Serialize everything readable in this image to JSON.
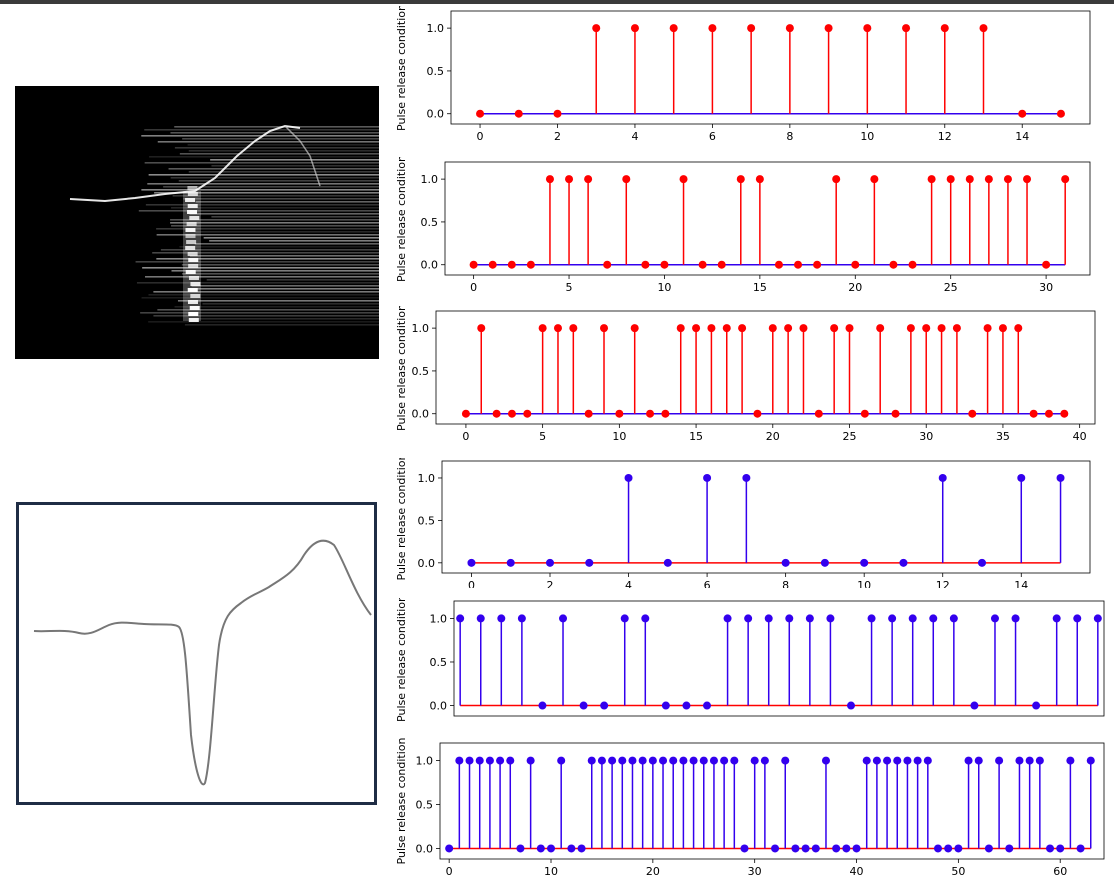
{
  "images": {
    "spectrogram": "grayscale spectrogram-like pulse image",
    "waveform": "single grey waveform with deep dip and later peak"
  },
  "colors": {
    "red": "#ff0000",
    "blue": "#3300ee",
    "frame": "#1f2d45",
    "wave": "#777777"
  },
  "chart_data": [
    {
      "type": "stem",
      "ylabel": "Pulse release condition",
      "x": [
        0,
        1,
        2,
        3,
        4,
        5,
        6,
        7,
        8,
        9,
        10,
        11,
        12,
        13,
        14,
        15
      ],
      "values": [
        0,
        0,
        0,
        1,
        1,
        1,
        1,
        1,
        1,
        1,
        1,
        1,
        1,
        1,
        0,
        0
      ],
      "xlim": [
        -0.75,
        15.75
      ],
      "ylim": [
        -0.12,
        1.2
      ],
      "xticks": [
        0,
        2,
        4,
        6,
        8,
        10,
        12,
        14
      ],
      "yticks": [
        0.0,
        0.5,
        1.0
      ],
      "stem_color": "#ff0000",
      "base_color": "#3300ee"
    },
    {
      "type": "stem",
      "ylabel": "Pulse release condition",
      "x": [
        0,
        1,
        2,
        3,
        4,
        5,
        6,
        7,
        8,
        9,
        10,
        11,
        12,
        13,
        14,
        15,
        16,
        17,
        18,
        19,
        20,
        21,
        22,
        23,
        24,
        25,
        26,
        27,
        28,
        29,
        30,
        31
      ],
      "values": [
        0,
        0,
        0,
        0,
        1,
        1,
        1,
        0,
        1,
        0,
        0,
        1,
        0,
        0,
        1,
        1,
        0,
        0,
        0,
        1,
        0,
        1,
        0,
        0,
        1,
        1,
        1,
        1,
        1,
        1,
        0,
        1
      ],
      "xlim": [
        -1.5,
        32.3
      ],
      "ylim": [
        -0.12,
        1.2
      ],
      "xticks": [
        0,
        5,
        10,
        15,
        20,
        25,
        30
      ],
      "yticks": [
        0.0,
        0.5,
        1.0
      ],
      "stem_color": "#ff0000",
      "base_color": "#3300ee"
    },
    {
      "type": "stem",
      "ylabel": "Pulse release condition",
      "x": [
        0,
        1,
        2,
        3,
        4,
        5,
        6,
        7,
        8,
        9,
        10,
        11,
        12,
        13,
        14,
        15,
        16,
        17,
        18,
        19,
        20,
        21,
        22,
        23,
        24,
        25,
        26,
        27,
        28,
        29,
        30,
        31,
        32,
        33,
        34,
        35,
        36,
        37,
        38,
        39
      ],
      "values": [
        0,
        1,
        0,
        0,
        0,
        1,
        1,
        1,
        0,
        1,
        0,
        1,
        0,
        0,
        1,
        1,
        1,
        1,
        1,
        0,
        1,
        1,
        1,
        0,
        1,
        1,
        0,
        1,
        0,
        1,
        1,
        1,
        1,
        0,
        1,
        1,
        1,
        0,
        0,
        0
      ],
      "xlim": [
        -1.95,
        41.0
      ],
      "ylim": [
        -0.12,
        1.2
      ],
      "xticks": [
        0,
        5,
        10,
        15,
        20,
        25,
        30,
        35,
        40
      ],
      "yticks": [
        0.0,
        0.5,
        1.0
      ],
      "stem_color": "#ff0000",
      "base_color": "#3300ee"
    },
    {
      "type": "stem",
      "ylabel": "Pulse release condition",
      "x": [
        0,
        1,
        2,
        3,
        4,
        5,
        6,
        7,
        8,
        9,
        10,
        11,
        12,
        13,
        14,
        15
      ],
      "values": [
        0,
        0,
        0,
        0,
        1,
        0,
        1,
        1,
        0,
        0,
        0,
        0,
        1,
        0,
        1,
        1
      ],
      "xlim": [
        -0.75,
        15.75
      ],
      "ylim": [
        -0.12,
        1.2
      ],
      "xticks": [
        0,
        2,
        4,
        6,
        8,
        10,
        12,
        14
      ],
      "yticks": [
        0.0,
        0.5,
        1.0
      ],
      "stem_color": "#3300ee",
      "base_color": "#ff0000"
    },
    {
      "type": "stem",
      "ylabel": "Pulse release condition",
      "x": [
        0,
        1,
        2,
        3,
        4,
        5,
        6,
        7,
        8,
        9,
        10,
        11,
        12,
        13,
        14,
        15,
        16,
        17,
        18,
        19,
        20,
        21,
        22,
        23,
        24,
        25,
        26,
        27,
        28,
        29,
        30,
        31
      ],
      "values": [
        1,
        1,
        1,
        1,
        0,
        1,
        0,
        0,
        1,
        1,
        0,
        0,
        0,
        1,
        1,
        1,
        1,
        1,
        1,
        0,
        1,
        1,
        1,
        1,
        1,
        0,
        1,
        1,
        0,
        1,
        1,
        1
      ],
      "xlim": [
        -0.3,
        31.3
      ],
      "ylim": [
        -0.12,
        1.2
      ],
      "xticks": [],
      "yticks": [
        0.0,
        0.5,
        1.0
      ],
      "stem_color": "#3300ee",
      "base_color": "#ff0000"
    },
    {
      "type": "stem",
      "ylabel": "Pulse release condition",
      "x": [
        0,
        1,
        2,
        3,
        4,
        5,
        6,
        7,
        8,
        9,
        10,
        11,
        12,
        13,
        14,
        15,
        16,
        17,
        18,
        19,
        20,
        21,
        22,
        23,
        24,
        25,
        26,
        27,
        28,
        29,
        30,
        31,
        32,
        33,
        34,
        35,
        36,
        37,
        38,
        39,
        40,
        41,
        42,
        43,
        44,
        45,
        46,
        47,
        48,
        49,
        50,
        51,
        52,
        53,
        54,
        55,
        56,
        57,
        58,
        59,
        60,
        61,
        62,
        63
      ],
      "values": [
        0,
        1,
        1,
        1,
        1,
        1,
        1,
        0,
        1,
        0,
        0,
        1,
        0,
        0,
        1,
        1,
        1,
        1,
        1,
        1,
        1,
        1,
        1,
        1,
        1,
        1,
        1,
        1,
        1,
        0,
        1,
        1,
        0,
        1,
        0,
        0,
        0,
        1,
        0,
        0,
        0,
        1,
        1,
        1,
        1,
        1,
        1,
        1,
        0,
        0,
        0,
        1,
        1,
        0,
        1,
        0,
        1,
        1,
        1,
        0,
        0,
        1,
        0,
        1
      ],
      "xlim": [
        -0.9,
        64.3
      ],
      "ylim": [
        -0.12,
        1.2
      ],
      "xticks": [
        0,
        10,
        20,
        30,
        40,
        50,
        60
      ],
      "yticks": [
        0.0,
        0.5,
        1.0
      ],
      "stem_color": "#3300ee",
      "base_color": "#ff0000"
    }
  ]
}
